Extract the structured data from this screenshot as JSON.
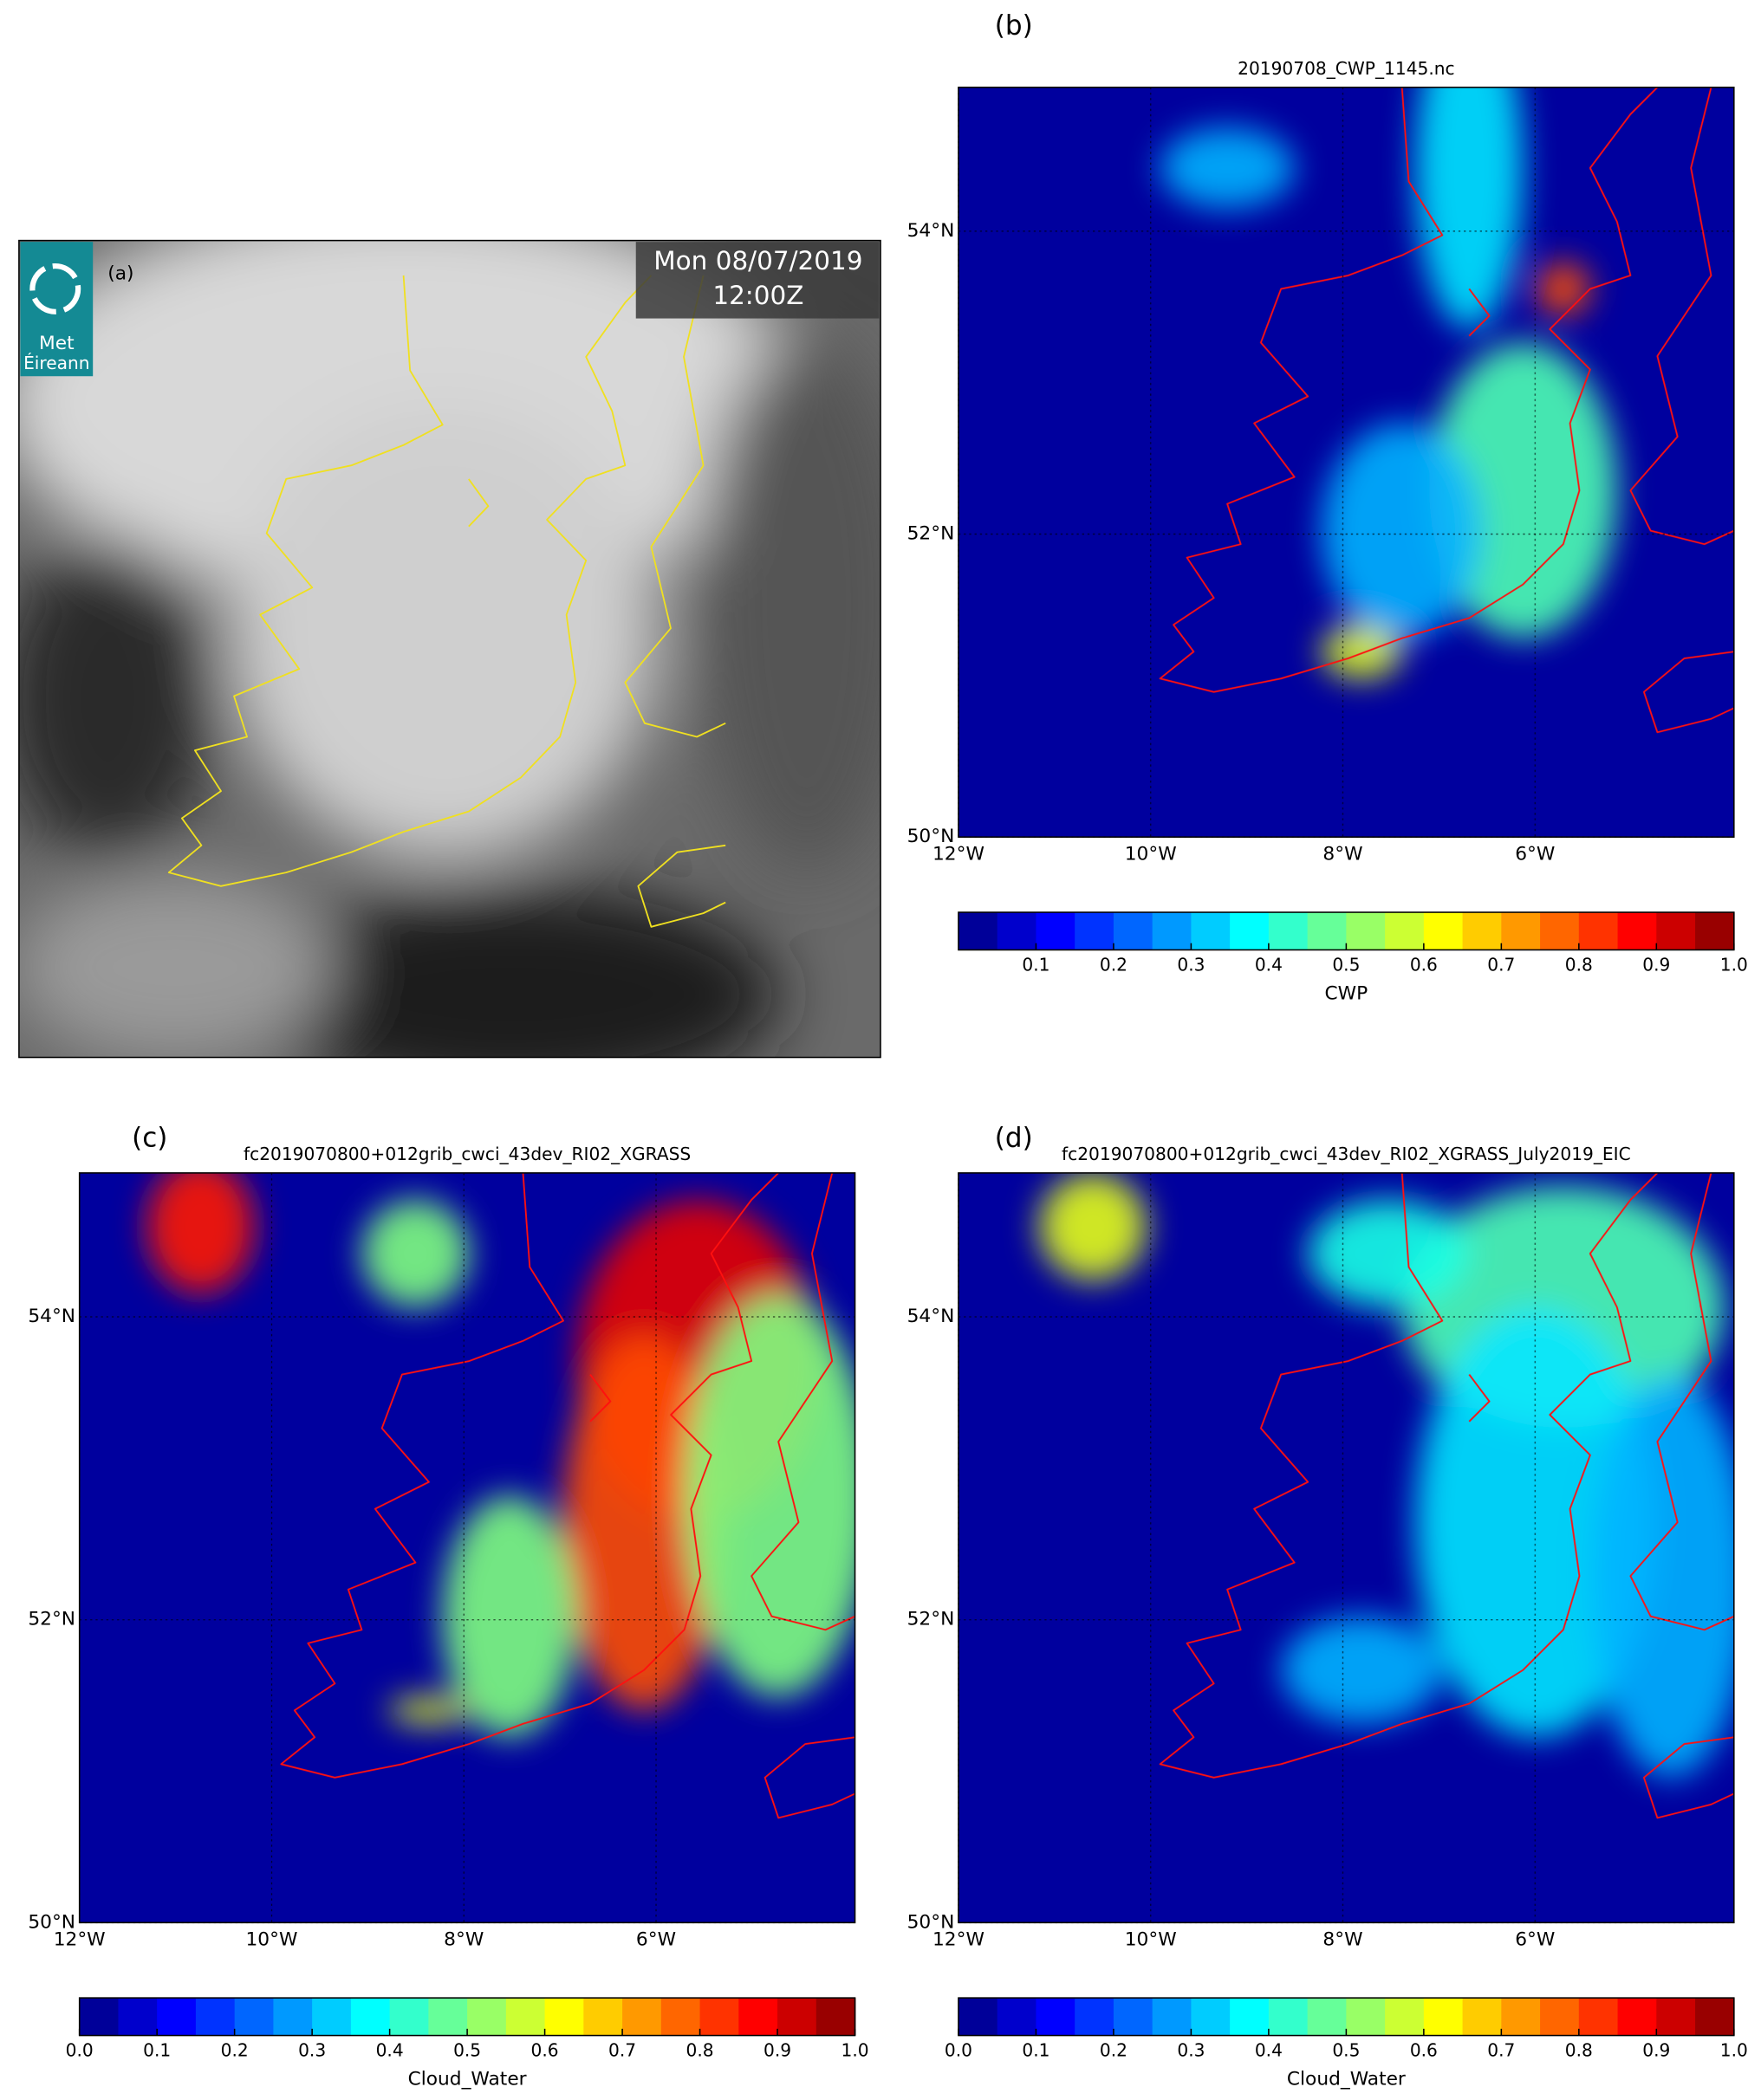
{
  "panels": [
    {
      "label": "(a)",
      "timestamp": [
        "Mon 08/07/2019",
        "12:00Z"
      ],
      "logo": [
        "Met",
        "Éireann"
      ]
    },
    {
      "label": "(b)",
      "title": "20190708_CWP_1145.nc",
      "xlim": [
        -12,
        -3.93
      ],
      "ylim": [
        50,
        54.95
      ],
      "xticks": [
        {
          "value": -12,
          "label": "12°W"
        },
        {
          "value": -10,
          "label": "10°W"
        },
        {
          "value": -8,
          "label": "8°W"
        },
        {
          "value": -6,
          "label": "6°W"
        }
      ],
      "yticks": [
        {
          "value": 50,
          "label": "50°N"
        },
        {
          "value": 52,
          "label": "52°N"
        },
        {
          "value": 54,
          "label": "54°N"
        }
      ],
      "colorbar": {
        "label": "CWP",
        "colormap": "jet",
        "bins": 20,
        "lim": [
          0,
          1
        ],
        "ticks": [
          0.1,
          0.2,
          0.3,
          0.4,
          0.5,
          0.6,
          0.7,
          0.8,
          0.9,
          {
            "value": 1,
            "label": "1.0"
          }
        ]
      }
    },
    {
      "label": "(c)",
      "title": "fc2019070800+012grib_cwci_43dev_RI02_XGRASS",
      "xlim": [
        -12,
        -3.93
      ],
      "ylim": [
        50,
        54.95
      ],
      "xticks": [
        {
          "value": -12,
          "label": "12°W"
        },
        {
          "value": -10,
          "label": "10°W"
        },
        {
          "value": -8,
          "label": "8°W"
        },
        {
          "value": -6,
          "label": "6°W"
        }
      ],
      "yticks": [
        {
          "value": 50,
          "label": "50°N"
        },
        {
          "value": 52,
          "label": "52°N"
        },
        {
          "value": 54,
          "label": "54°N"
        }
      ],
      "colorbar": {
        "label": "Cloud_Water",
        "colormap": "jet",
        "bins": 20,
        "lim": [
          0,
          1
        ],
        "ticks": [
          {
            "value": 0,
            "label": "0.0"
          },
          0.1,
          0.2,
          0.3,
          0.4,
          0.5,
          0.6,
          0.7,
          0.8,
          0.9,
          {
            "value": 1,
            "label": "1.0"
          }
        ]
      }
    },
    {
      "label": "(d)",
      "title": "fc2019070800+012grib_cwci_43dev_RI02_XGRASS_July2019_EIC",
      "xlim": [
        -12,
        -3.93
      ],
      "ylim": [
        50,
        54.95
      ],
      "xticks": [
        {
          "value": -12,
          "label": "12°W"
        },
        {
          "value": -10,
          "label": "10°W"
        },
        {
          "value": -8,
          "label": "8°W"
        },
        {
          "value": -6,
          "label": "6°W"
        }
      ],
      "yticks": [
        {
          "value": 50,
          "label": "50°N"
        },
        {
          "value": 52,
          "label": "52°N"
        },
        {
          "value": 54,
          "label": "54°N"
        }
      ],
      "colorbar": {
        "label": "Cloud_Water",
        "colormap": "jet",
        "bins": 20,
        "lim": [
          0,
          1
        ],
        "ticks": [
          {
            "value": 0,
            "label": "0.0"
          },
          0.1,
          0.2,
          0.3,
          0.4,
          0.5,
          0.6,
          0.7,
          0.8,
          0.9,
          {
            "value": 1,
            "label": "1.0"
          }
        ]
      }
    }
  ]
}
